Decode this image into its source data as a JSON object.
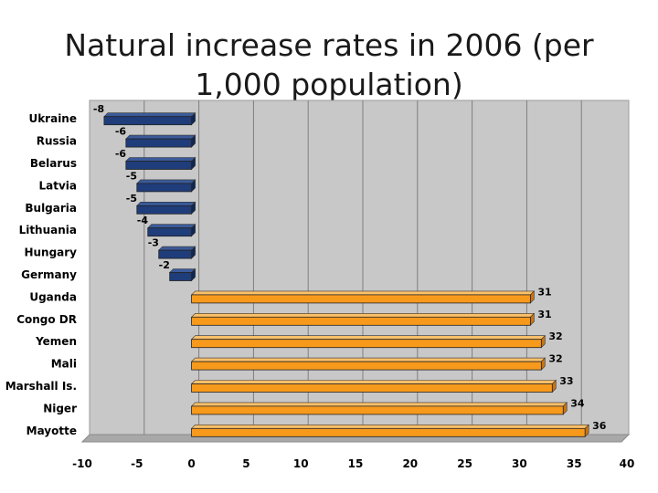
{
  "slide": {
    "title": "Natural increase rates in 2006 (per 1,000 population)"
  },
  "colors": {
    "negative_bar": "#1f3d7a",
    "positive_bar": "#f79a1c",
    "plot_background": "#c8c8c8",
    "gridline": "#7f7f7f"
  },
  "chart_data": {
    "type": "bar",
    "orientation": "horizontal",
    "title": "Natural increase rates in 2006 (per 1,000 population)",
    "categories": [
      "Ukraine",
      "Russia",
      "Belarus",
      "Latvia",
      "Bulgaria",
      "Lithuania",
      "Hungary",
      "Germany",
      "Uganda",
      "Congo DR",
      "Yemen",
      "Mali",
      "Marshall Is.",
      "Niger",
      "Mayotte"
    ],
    "values": [
      -8,
      -6,
      -6,
      -5,
      -5,
      -4,
      -3,
      -2,
      31,
      31,
      32,
      32,
      33,
      34,
      36
    ],
    "data_labels": [
      "-8",
      "-6",
      "-6",
      "-5",
      "-5",
      "-4",
      "-3",
      "-2",
      "31",
      "31",
      "32",
      "32",
      "33",
      "34",
      "36"
    ],
    "xlim": [
      -10,
      40
    ],
    "x_ticks": [
      -10,
      -5,
      0,
      5,
      10,
      15,
      20,
      25,
      30,
      35,
      40
    ],
    "x_tick_labels": [
      "-10",
      "-5",
      "0",
      "5",
      "10",
      "15",
      "20",
      "25",
      "30",
      "35",
      "40"
    ],
    "xlabel": "",
    "ylabel": "",
    "grid": true,
    "legend": "none",
    "style": "3d"
  }
}
